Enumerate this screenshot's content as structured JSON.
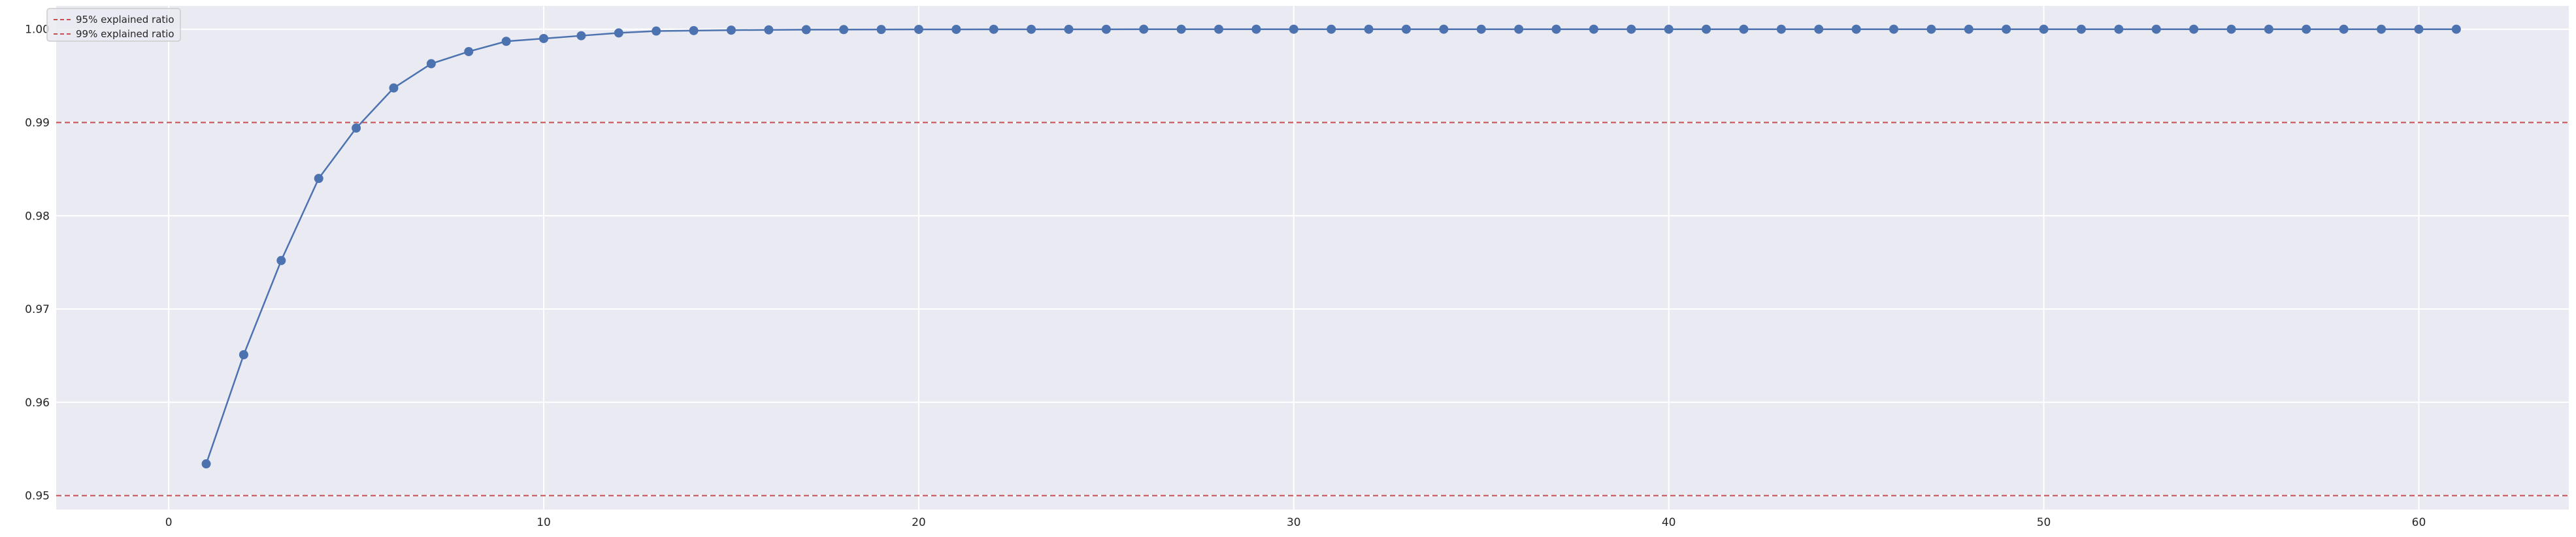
{
  "chart_data": {
    "type": "line",
    "title": "",
    "xlabel": "",
    "ylabel": "",
    "xlim": [
      -3,
      64
    ],
    "ylim": [
      0.9485,
      1.0025
    ],
    "x_ticks": [
      0,
      10,
      20,
      30,
      40,
      50,
      60
    ],
    "y_ticks": [
      0.95,
      0.96,
      0.97,
      0.98,
      0.99,
      1.0
    ],
    "x_tick_labels": [
      "0",
      "10",
      "20",
      "30",
      "40",
      "50",
      "60"
    ],
    "y_tick_labels": [
      "0.95",
      "0.96",
      "0.97",
      "0.98",
      "0.99",
      "1.00"
    ],
    "grid": true,
    "background": "#eaeaf2",
    "series": [
      {
        "color": "#4c72b0",
        "marker": "circle",
        "x": [
          1,
          2,
          3,
          4,
          5,
          6,
          7,
          8,
          9,
          10,
          11,
          12,
          13,
          14,
          15,
          16,
          17,
          18,
          19,
          20,
          21,
          22,
          23,
          24,
          25,
          26,
          27,
          28,
          29,
          30,
          31,
          32,
          33,
          34,
          35,
          36,
          37,
          38,
          39,
          40,
          41,
          42,
          43,
          44,
          45,
          46,
          47,
          48,
          49,
          50,
          51,
          52,
          53,
          54,
          55,
          56,
          57,
          58,
          59,
          60,
          61
        ],
        "values": [
          0.9534,
          0.9651,
          0.9752,
          0.984,
          0.9894,
          0.9937,
          0.9963,
          0.9976,
          0.9987,
          0.999,
          0.9993,
          0.9996,
          0.9998,
          0.99985,
          0.9999,
          0.99993,
          0.99995,
          0.99996,
          0.99997,
          0.99998,
          0.99998,
          0.99999,
          0.99999,
          0.99999,
          0.99999,
          1.0,
          1.0,
          1.0,
          1.0,
          1.0,
          1.0,
          1.0,
          1.0,
          1.0,
          1.0,
          1.0,
          1.0,
          1.0,
          1.0,
          1.0,
          1.0,
          1.0,
          1.0,
          1.0,
          1.0,
          1.0,
          1.0,
          1.0,
          1.0,
          1.0,
          1.0,
          1.0,
          1.0,
          1.0,
          1.0,
          1.0,
          1.0,
          1.0,
          1.0,
          1.0,
          1.0
        ]
      }
    ],
    "reference_lines": [
      {
        "label": "95% explained ratio",
        "y": 0.95,
        "color": "#c44e52",
        "style": "dashed"
      },
      {
        "label": "99% explained ratio",
        "y": 0.99,
        "color": "#c44e52",
        "style": "dashed"
      }
    ],
    "legend": {
      "placement": "top-left"
    }
  }
}
